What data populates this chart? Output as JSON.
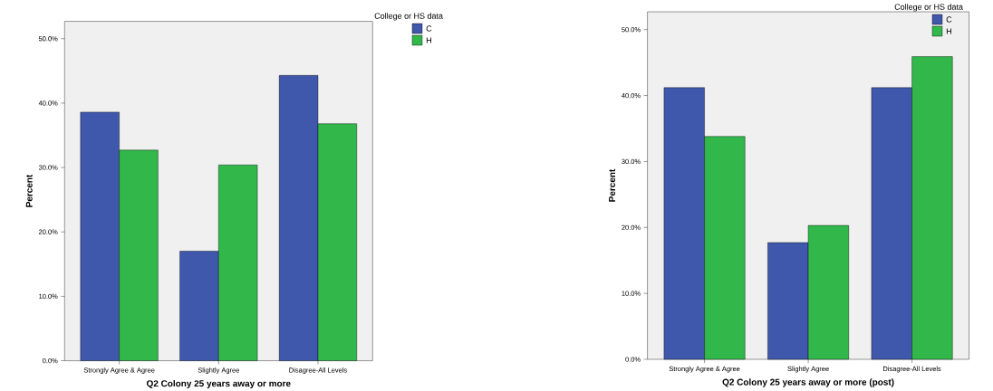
{
  "chart_data": [
    {
      "type": "bar",
      "xlabel": "Q2 Colony 25 years away or more",
      "ylabel": "Percent",
      "legend_title": "College or HS data",
      "legend": "right",
      "categories": [
        "Strongly Agree & Agree",
        "Slightly Agree",
        "Disagree-All Levels"
      ],
      "series": [
        {
          "name": "C",
          "color": "#3f58ab",
          "values": [
            38.6,
            17.0,
            44.3
          ]
        },
        {
          "name": "H",
          "color": "#31b74a",
          "values": [
            32.7,
            30.4,
            36.8
          ]
        }
      ],
      "ylim": [
        0,
        52.7
      ],
      "yticks": [
        {
          "value": 0,
          "label": "0.0%"
        },
        {
          "value": 10,
          "label": "10.0%"
        },
        {
          "value": 20,
          "label": "20.0%"
        },
        {
          "value": 30,
          "label": "30.0%"
        },
        {
          "value": 40,
          "label": "40.0%"
        },
        {
          "value": 50,
          "label": "50.0%"
        }
      ]
    },
    {
      "type": "bar",
      "xlabel": "Q2 Colony 25 years away or more (post)",
      "ylabel": "Percent",
      "legend_title": "College or HS data",
      "legend": "right",
      "categories": [
        "Strongly Agree & Agree",
        "Slightly Agree",
        "Disagree-All Levels"
      ],
      "series": [
        {
          "name": "C",
          "color": "#3f58ab",
          "values": [
            41.2,
            17.7,
            41.2
          ]
        },
        {
          "name": "H",
          "color": "#31b74a",
          "values": [
            33.8,
            20.3,
            45.9
          ]
        }
      ],
      "ylim": [
        0,
        52.7
      ],
      "yticks": [
        {
          "value": 0,
          "label": "0.0%"
        },
        {
          "value": 10,
          "label": "10.0%"
        },
        {
          "value": 20,
          "label": "20.0%"
        },
        {
          "value": 30,
          "label": "30.0%"
        },
        {
          "value": 40,
          "label": "40.0%"
        },
        {
          "value": 50,
          "label": "50.0%"
        }
      ]
    }
  ]
}
